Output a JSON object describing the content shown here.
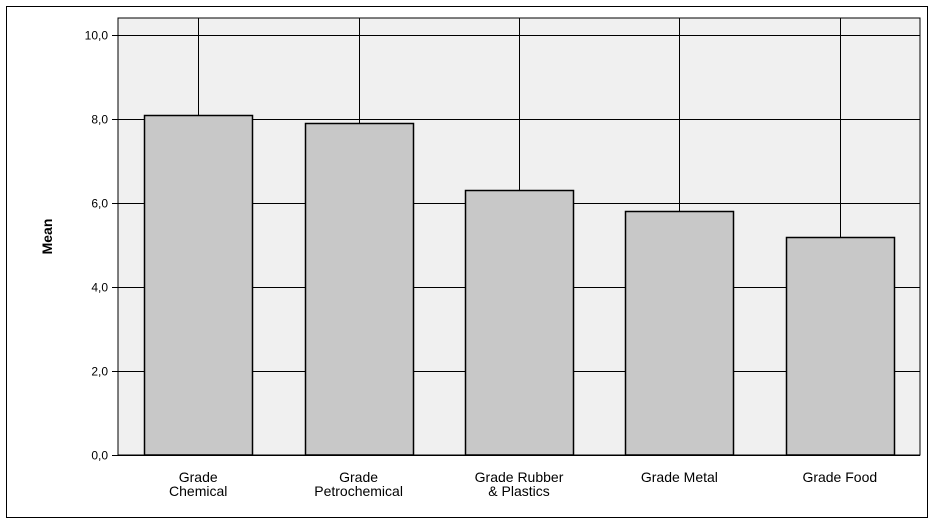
{
  "chart_data": {
    "type": "bar",
    "categories": [
      [
        "Grade",
        "Chemical"
      ],
      [
        "Grade",
        "Petrochemical"
      ],
      [
        "Grade Rubber",
        "& Plastics"
      ],
      [
        "Grade Metal"
      ],
      [
        "Grade Food"
      ]
    ],
    "values": [
      8.1,
      7.9,
      6.3,
      5.8,
      5.2
    ],
    "ylabel": "Mean",
    "xlabel": "",
    "ylim": [
      0,
      10.4
    ],
    "yticks": [
      0,
      2,
      4,
      6,
      8,
      10
    ],
    "ytick_labels": [
      "0,0",
      "2,0",
      "4,0",
      "6,0",
      "8,0",
      "10,0"
    ],
    "grid": true,
    "colors": {
      "plot_background": "#f0f0f0",
      "bar_fill": "#c8c8c8",
      "bar_stroke": "#000000",
      "grid": "#000000"
    }
  }
}
